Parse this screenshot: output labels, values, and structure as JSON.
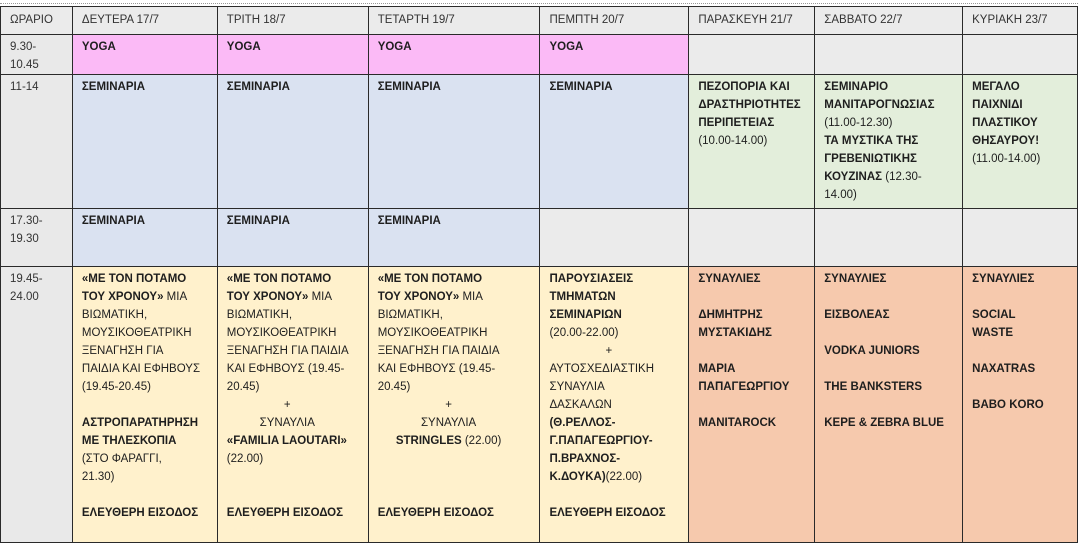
{
  "header": [
    "ΩΡΑΡΙΟ",
    "ΔΕΥΤΕΡΑ 17/7",
    "ΤΡΙΤΗ 18/7",
    "ΤΕΤΑΡΤΗ 19/7",
    "ΠΕΜΠΤΗ 20/7",
    "ΠΑΡΑΣΚΕΥΗ 21/7",
    "ΣΑΒΒΑΤΟ 22/7",
    "ΚΥΡΙΑΚΗ 23/7"
  ],
  "colors": {
    "header": "#ebebeb",
    "yoga": "#fbbaf6",
    "seminar": "#dae2f1",
    "daytime_activity": "#e3eedb",
    "evening": "#fff1cc",
    "concerts": "#f6c9ad"
  },
  "rows": [
    {
      "time": [
        "9.30-",
        "10.45"
      ],
      "cells": [
        {
          "color": "pink",
          "lines": [
            {
              "b": "YOGA"
            }
          ]
        },
        {
          "color": "pink",
          "lines": [
            {
              "b": "YOGA"
            }
          ]
        },
        {
          "color": "pink",
          "lines": [
            {
              "b": "YOGA"
            }
          ]
        },
        {
          "color": "pink",
          "lines": [
            {
              "b": "YOGA"
            }
          ]
        },
        {
          "color": "",
          "lines": []
        },
        {
          "color": "",
          "lines": []
        },
        {
          "color": "",
          "lines": []
        }
      ]
    },
    {
      "time": [
        "11-14"
      ],
      "cells": [
        {
          "color": "blue",
          "lines": [
            {
              "b": "ΣΕΜΙΝΑΡΙΑ"
            }
          ]
        },
        {
          "color": "blue",
          "lines": [
            {
              "b": "ΣΕΜΙΝΑΡΙΑ"
            }
          ]
        },
        {
          "color": "blue",
          "lines": [
            {
              "b": "ΣΕΜΙΝΑΡΙΑ"
            }
          ]
        },
        {
          "color": "blue",
          "lines": [
            {
              "b": "ΣΕΜΙΝΑΡΙΑ"
            }
          ]
        },
        {
          "color": "green",
          "lines": [
            {
              "b": "ΠΕΖΟΠΟΡΙΑ ΚΑΙ"
            },
            {
              "b": "ΔΡΑΣΤΗΡΙΟΤΗΤΕΣ"
            },
            {
              "b": "ΠΕΡΙΠΕΤΕΙΑΣ"
            },
            {
              "n": "(10.00-14.00)"
            }
          ]
        },
        {
          "color": "green",
          "lines": [
            {
              "b": "ΣΕΜΙΝΑΡΙΟ"
            },
            {
              "b": "ΜΑΝΙΤΑΡΟΓΝΩΣΙΑΣ"
            },
            {
              "n": "(11.00-12.30)"
            },
            {
              "b": "ΤΑ ΜΥΣΤΙΚΑ ΤΗΣ"
            },
            {
              "b": "ΓΡΕΒΕΝΙΩΤΙΚΗΣ"
            },
            {
              "b": "ΚΟΥΖΙΝΑΣ",
              "n": " (12.30-"
            },
            {
              "n": "14.00)"
            }
          ]
        },
        {
          "color": "green",
          "lines": [
            {
              "b": "ΜΕΓΑΛΟ"
            },
            {
              "b": "ΠΑΙΧΝΙΔΙ"
            },
            {
              "b": "ΠΛΑΣΤΙΚΟΥ"
            },
            {
              "b": "ΘΗΣΑΥΡΟΥ!"
            },
            {
              "n": "(11.00-14.00)"
            }
          ]
        }
      ]
    },
    {
      "time": [
        "17.30-",
        "19.30"
      ],
      "cells": [
        {
          "color": "blue",
          "lines": [
            {
              "b": "ΣΕΜΙΝΑΡΙΑ"
            }
          ]
        },
        {
          "color": "blue",
          "lines": [
            {
              "b": "ΣΕΜΙΝΑΡΙΑ"
            }
          ]
        },
        {
          "color": "blue",
          "lines": [
            {
              "b": "ΣΕΜΙΝΑΡΙΑ"
            }
          ]
        },
        {
          "color": "",
          "lines": []
        },
        {
          "color": "",
          "lines": []
        },
        {
          "color": "",
          "lines": []
        },
        {
          "color": "",
          "lines": []
        }
      ]
    },
    {
      "time": [
        "19.45-",
        "24.00"
      ],
      "cells": [
        {
          "color": "yellow",
          "lines": [
            {
              "b": "«ΜΕ ΤΟΝ ΠΟΤΑΜΟ"
            },
            {
              "b": "ΤΟΥ ΧΡΟΝΟΥ»",
              "n": " ΜΙΑ"
            },
            {
              "n": "ΒΙΩΜΑΤΙΚΗ,"
            },
            {
              "n": "ΜΟΥΣΙΚΟΘΕΑΤΡΙΚΗ"
            },
            {
              "n": "ΞΕΝΑΓΗΣΗ ΓΙΑ"
            },
            {
              "n": "ΠΑΙΔΙΑ ΚΑΙ ΕΦΗΒΟΥΣ"
            },
            {
              "n": "(19.45-20.45)"
            },
            {},
            {
              "b": "ΑΣΤΡΟΠΑΡΑΤΗΡΗΣΗ"
            },
            {
              "b": "ΜΕ ΤΗΛΕΣΚΟΠΙΑ"
            },
            {
              "n": "(ΣΤΟ ΦΑΡΑΓΓΙ,"
            },
            {
              "n": "21.30)"
            },
            {},
            {
              "b": "ΕΛΕΥΘΕΡΗ ΕΙΣΟΔΟΣ"
            }
          ]
        },
        {
          "color": "yellow",
          "lines": [
            {
              "b": "«ΜΕ ΤΟΝ ΠΟΤΑΜΟ"
            },
            {
              "b": "ΤΟΥ ΧΡΟΝΟΥ»",
              "n": " ΜΙΑ"
            },
            {
              "n": "ΒΙΩΜΑΤΙΚΗ,"
            },
            {
              "n": "ΜΟΥΣΙΚΟΘΕΑΤΡΙΚΗ"
            },
            {
              "n": "ΞΕΝΑΓΗΣΗ ΓΙΑ ΠΑΙΔΙΑ"
            },
            {
              "n": "ΚΑΙ ΕΦΗΒΟΥΣ (19.45-"
            },
            {
              "n": "20.45)"
            },
            {
              "n": "+",
              "c": true
            },
            {
              "n": "ΣΥΝΑΥΛΙΑ",
              "c": true
            },
            {
              "b": "«FAMILIA LAOUTARI»"
            },
            {
              "n": "(22.00)"
            },
            {},
            {},
            {
              "b": "ΕΛΕΥΘΕΡΗ ΕΙΣΟΔΟΣ"
            }
          ]
        },
        {
          "color": "yellow",
          "lines": [
            {
              "b": "«ΜΕ ΤΟΝ ΠΟΤΑΜΟ"
            },
            {
              "b": "ΤΟΥ ΧΡΟΝΟΥ»",
              "n": " ΜΙΑ"
            },
            {
              "n": "ΒΙΩΜΑΤΙΚΗ,"
            },
            {
              "n": "ΜΟΥΣΙΚΟΘΕΑΤΡΙΚΗ"
            },
            {
              "n": "ΞΕΝΑΓΗΣΗ ΓΙΑ ΠΑΙΔΙΑ"
            },
            {
              "n": "ΚΑΙ ΕΦΗΒΟΥΣ (19.45-"
            },
            {
              "n": "20.45)"
            },
            {
              "n": "+",
              "c": true
            },
            {
              "n": "ΣΥΝΑΥΛΙΑ",
              "c": true
            },
            {
              "b": "STRINGLES",
              "n": " (22.00)",
              "c": true
            },
            {},
            {},
            {},
            {
              "b": "ΕΛΕΥΘΕΡΗ ΕΙΣΟΔΟΣ"
            }
          ]
        },
        {
          "color": "yellow",
          "lines": [
            {
              "b": "ΠΑΡΟΥΣΙΑΣΕΙΣ"
            },
            {
              "b": "ΤΜΗΜΑΤΩΝ"
            },
            {
              "b": "ΣΕΜΙΝΑΡΙΩΝ"
            },
            {
              "n": "(20.00-22.00)"
            },
            {
              "n": "+",
              "c": true
            },
            {
              "n": "ΑΥΤΟΣΧΕΔΙΑΣΤΙΚΗ"
            },
            {
              "n": "ΣΥΝΑΥΛΙΑ"
            },
            {
              "n": "ΔΑΣΚΑΛΩΝ"
            },
            {
              "b": "(Θ.ΡΕΛΛΟΣ-"
            },
            {
              "b": "Γ.ΠΑΠΑΓΕΩΡΓΙΟΥ-"
            },
            {
              "b": "Π.ΒΡΑΧΝΟΣ-"
            },
            {
              "b": "Κ.ΔΟΥΚΑ)",
              "n": "(22.00)"
            },
            {},
            {
              "b": "ΕΛΕΥΘΕΡΗ ΕΙΣΟΔΟΣ"
            }
          ]
        },
        {
          "color": "orange",
          "lines": [
            {
              "b": "ΣΥΝΑΥΛΙΕΣ"
            },
            {},
            {
              "b": "ΔΗΜΗΤΡΗΣ"
            },
            {
              "b": "ΜΥΣΤΑΚΙΔΗΣ"
            },
            {},
            {
              "b": "ΜΑΡΙΑ"
            },
            {
              "b": "ΠΑΠΑΓΕΩΡΓΙΟΥ"
            },
            {},
            {
              "b": "MANITAROCK"
            }
          ]
        },
        {
          "color": "orange",
          "lines": [
            {
              "b": "ΣΥΝΑΥΛΙΕΣ"
            },
            {},
            {
              "b": "ΕΙΣΒΟΛΕΑΣ"
            },
            {},
            {
              "b": "VODKA JUNIORS"
            },
            {},
            {
              "b": "THE BANKSTERS"
            },
            {},
            {
              "b": "KEPE & ZEBRA BLUE"
            }
          ]
        },
        {
          "color": "orange",
          "lines": [
            {
              "b": "ΣΥΝΑΥΛΙΕΣ"
            },
            {},
            {
              "b": "SOCIAL"
            },
            {
              "b": "WASTE"
            },
            {},
            {
              "b": "NAXATRAS"
            },
            {},
            {
              "b": "BABO KORO"
            }
          ]
        }
      ]
    }
  ]
}
